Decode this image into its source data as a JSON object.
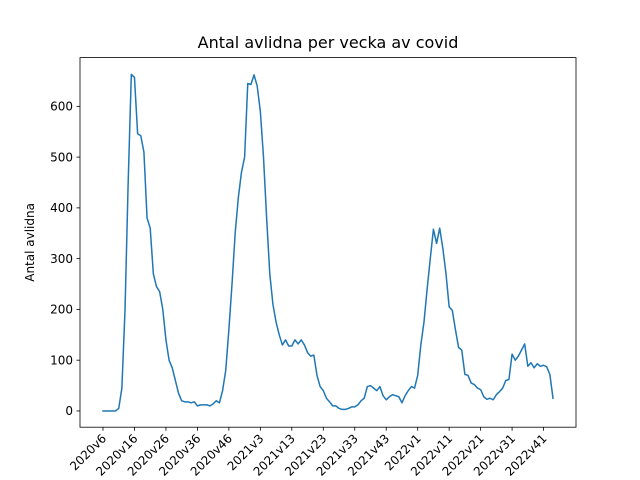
{
  "chart_data": {
    "type": "line",
    "title": "Antal avlidna per vecka av covid",
    "xlabel": "",
    "ylabel": "Antal avlidna",
    "ylim": [
      -32,
      696
    ],
    "yticks": [
      0,
      100,
      200,
      300,
      400,
      500,
      600
    ],
    "grid": false,
    "xtick_labels": [
      "2020v6",
      "2020v16",
      "2020v26",
      "2020v36",
      "2020v46",
      "2021v3",
      "2021v13",
      "2021v23",
      "2021v33",
      "2021v43",
      "2022v1",
      "2022v11",
      "2022v21",
      "2022v31",
      "2022v41"
    ],
    "line_color": "#1f77b4",
    "series": [
      {
        "values": [
          0,
          0,
          0,
          0,
          0,
          5,
          45,
          200,
          450,
          663,
          657,
          546,
          542,
          510,
          380,
          360,
          270,
          245,
          235,
          200,
          140,
          100,
          85,
          60,
          35,
          20,
          18,
          18,
          16,
          18,
          10,
          12,
          12,
          12,
          10,
          14,
          20,
          16,
          40,
          80,
          160,
          250,
          350,
          420,
          470,
          500,
          645,
          643,
          662,
          640,
          590,
          500,
          380,
          270,
          210,
          175,
          150,
          130,
          140,
          128,
          128,
          140,
          132,
          140,
          130,
          115,
          108,
          110,
          70,
          48,
          40,
          25,
          18,
          10,
          10,
          5,
          3,
          3,
          5,
          8,
          8,
          12,
          20,
          25,
          48,
          50,
          45,
          40,
          48,
          30,
          22,
          28,
          32,
          30,
          28,
          16,
          30,
          40,
          48,
          45,
          70,
          130,
          175,
          240,
          300,
          358,
          330,
          360,
          320,
          270,
          205,
          198,
          160,
          125,
          120,
          72,
          70,
          55,
          52,
          45,
          42,
          28,
          23,
          25,
          22,
          32,
          38,
          45,
          60,
          62,
          112,
          100,
          108,
          120,
          132,
          88,
          95,
          85,
          93,
          88,
          90,
          87,
          72,
          25
        ]
      }
    ]
  }
}
